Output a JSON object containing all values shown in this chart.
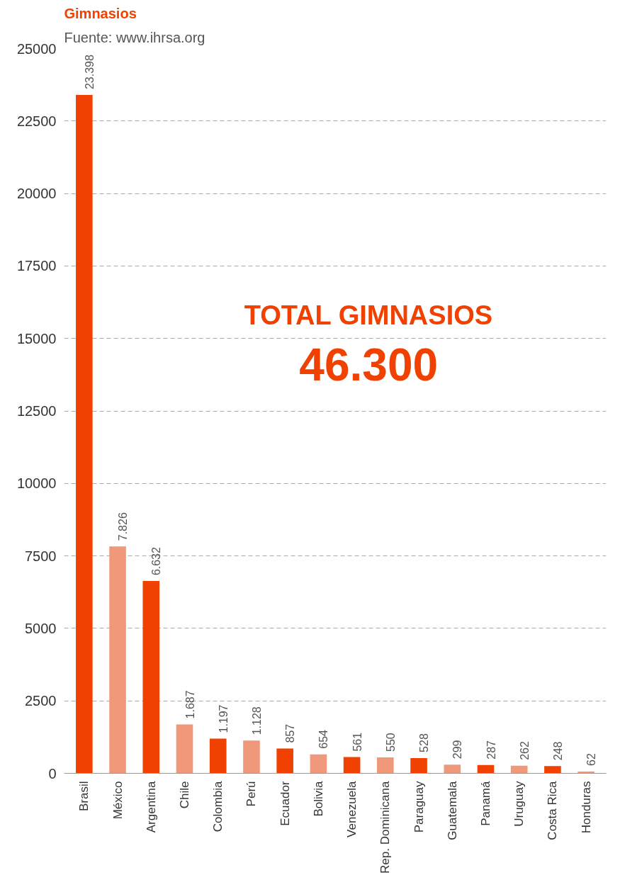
{
  "chart_data": {
    "type": "bar",
    "title": "Gimnasios",
    "subtitle": "Fuente: www.ihrsa.org",
    "categories": [
      "Brasil",
      "México",
      "Argentina",
      "Chile",
      "Colombia",
      "Perú",
      "Ecuador",
      "Bolivia",
      "Venezuela",
      "Rep. Dominicana",
      "Paraguay",
      "Guatemala",
      "Panamá",
      "Uruguay",
      "Costa Rica",
      "Honduras"
    ],
    "values": [
      23398,
      7826,
      6632,
      1687,
      1197,
      1128,
      857,
      654,
      561,
      550,
      528,
      299,
      287,
      262,
      248,
      62
    ],
    "colors": [
      "#f04100",
      "#f0997a",
      "#f04100",
      "#f0997a",
      "#f04100",
      "#f0997a",
      "#f04100",
      "#f0997a",
      "#f04100",
      "#f0997a",
      "#f04100",
      "#f0997a",
      "#f04100",
      "#f0997a",
      "#f04100",
      "#f0997a"
    ],
    "value_labels": [
      "23.398",
      "7.826",
      "6.632",
      "1.687",
      "1.197",
      "1.128",
      "857",
      "654",
      "561",
      "550",
      "528",
      "299",
      "287",
      "262",
      "248",
      "62"
    ],
    "ylim": [
      0,
      25000
    ],
    "yticks": [
      0,
      2500,
      5000,
      7500,
      10000,
      12500,
      15000,
      17500,
      20000,
      22500,
      25000
    ],
    "grid": "y",
    "annotations": [
      "TOTAL GIMNASIOS",
      "46.300"
    ]
  }
}
